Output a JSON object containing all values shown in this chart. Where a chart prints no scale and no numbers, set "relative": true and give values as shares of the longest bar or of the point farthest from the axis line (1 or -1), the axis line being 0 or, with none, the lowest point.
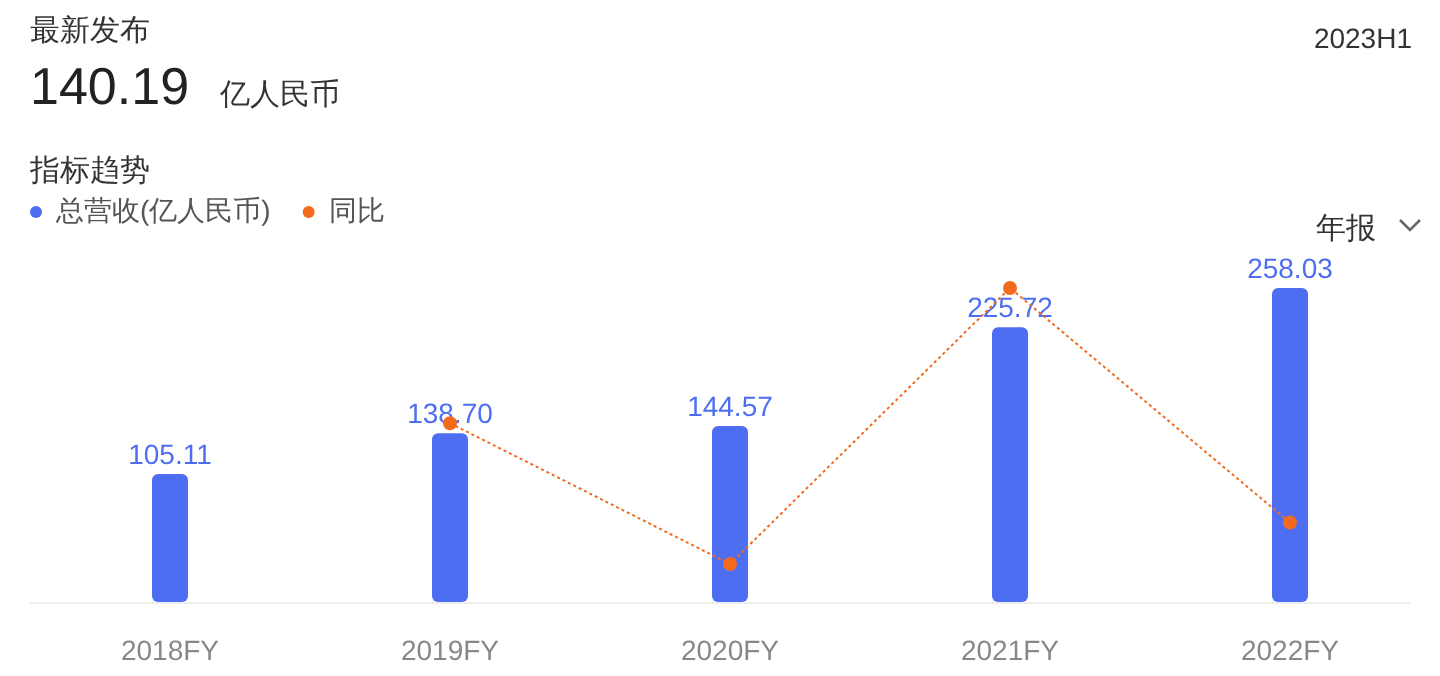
{
  "chart_data": [
    {
      "type": "bar",
      "title": "最新发布",
      "subtitle": "指标趋势",
      "annotations": [
        "140.19",
        "亿人民币",
        "2023H1",
        "年报"
      ],
      "categories": [
        "2018FY",
        "2019FY",
        "2020FY",
        "2021FY",
        "2022FY"
      ],
      "legend": "top left",
      "series": [
        {
          "name": "总营收(亿人民币)",
          "color": "#4e6ef2",
          "values": [
            105.11,
            138.7,
            144.57,
            225.72,
            258.03
          ],
          "value_labels": [
            "105.11",
            "138.70",
            "144.57",
            "225.72",
            "258.03"
          ]
        }
      ]
    },
    {
      "type": "line",
      "relative": true,
      "legend": "top left",
      "categories": [
        null,
        null,
        null,
        null,
        null
      ],
      "series": [
        {
          "name": "同比",
          "color": "#f26b1d",
          "marker": "circle",
          "line_style": "dotted",
          "values": [
            null,
            0.51,
            0,
            1,
            0.15
          ]
        }
      ]
    }
  ]
}
